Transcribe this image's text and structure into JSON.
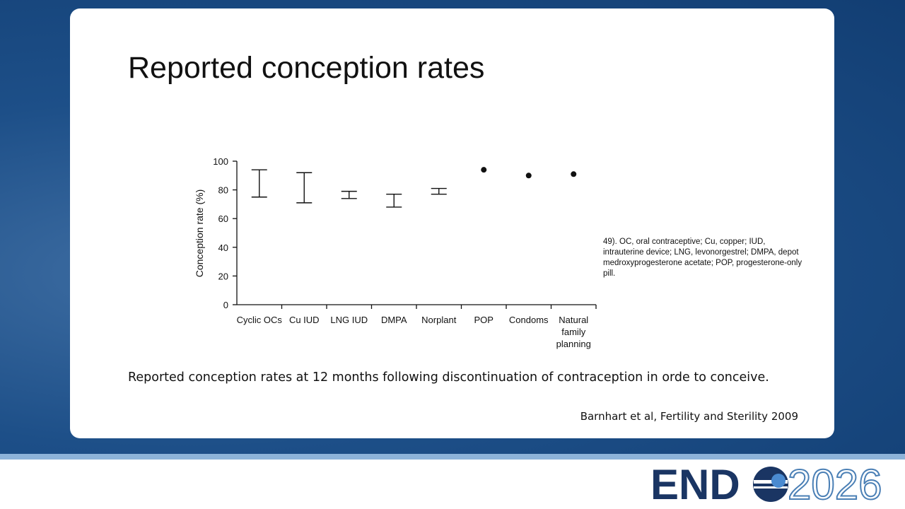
{
  "title": "Reported conception rates",
  "footnote": "49). OC, oral contraceptive; Cu, copper; IUD, intrauterine device; LNG, levonorgestrel; DMPA, depot medroxyprogesterone acetate; POP, progesterone-only pill.",
  "caption": "Reported conception rates at 12 months following discontinuation of contraception in orde to conceive.",
  "citation": "Barnhart et al, Fertility and Sterility 2009",
  "logo": {
    "word": "END",
    "year": "2026"
  },
  "chart_data": {
    "type": "range",
    "y_label": "Conception rate (%)",
    "categories": [
      "Cyclic OCs",
      "Cu IUD",
      "LNG IUD",
      "DMPA",
      "Norplant",
      "POP",
      "Condoms",
      "Natural family planning"
    ],
    "low": [
      75,
      71,
      74,
      68,
      77,
      null,
      null,
      null
    ],
    "high": [
      94,
      92,
      79,
      77,
      81,
      null,
      null,
      null
    ],
    "values": [
      null,
      null,
      null,
      null,
      null,
      94,
      90,
      91
    ],
    "color": "#111111",
    "ylim": [
      0,
      100
    ],
    "yticks": [
      0,
      20,
      40,
      60,
      80,
      100
    ]
  }
}
